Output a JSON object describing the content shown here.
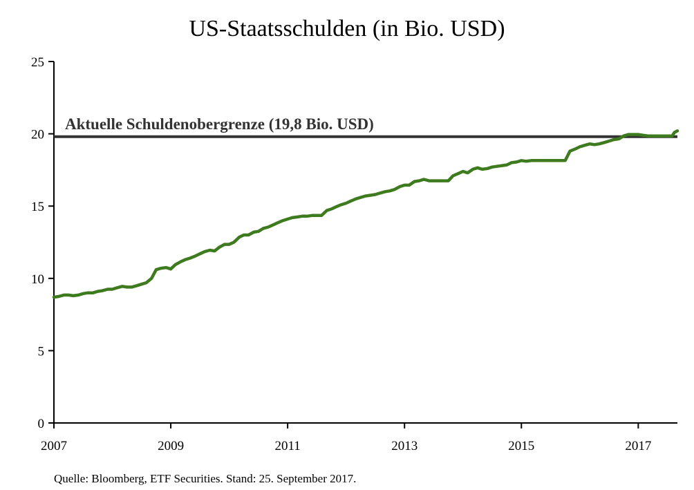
{
  "chart_data": {
    "type": "line",
    "title": "US-Staatsschulden (in Bio. USD)",
    "xlabel": "",
    "ylabel": "",
    "xlim": [
      2007.0,
      2017.67
    ],
    "ylim": [
      0,
      25
    ],
    "yticks": [
      0,
      5,
      10,
      15,
      20,
      25
    ],
    "xticks": [
      2007,
      2009,
      2011,
      2013,
      2015,
      2017
    ],
    "series": [
      {
        "name": "US-Staatsschulden",
        "color": "#3e7a1e",
        "x": [
          2007.0,
          2007.08,
          2007.17,
          2007.25,
          2007.33,
          2007.42,
          2007.5,
          2007.58,
          2007.67,
          2007.75,
          2007.83,
          2007.92,
          2008.0,
          2008.08,
          2008.17,
          2008.25,
          2008.33,
          2008.42,
          2008.5,
          2008.58,
          2008.67,
          2008.75,
          2008.83,
          2008.92,
          2009.0,
          2009.08,
          2009.17,
          2009.25,
          2009.33,
          2009.42,
          2009.5,
          2009.58,
          2009.67,
          2009.75,
          2009.83,
          2009.92,
          2010.0,
          2010.08,
          2010.17,
          2010.25,
          2010.33,
          2010.42,
          2010.5,
          2010.58,
          2010.67,
          2010.75,
          2010.83,
          2010.92,
          2011.0,
          2011.08,
          2011.17,
          2011.25,
          2011.33,
          2011.42,
          2011.5,
          2011.58,
          2011.67,
          2011.75,
          2011.83,
          2011.92,
          2012.0,
          2012.08,
          2012.17,
          2012.25,
          2012.33,
          2012.42,
          2012.5,
          2012.58,
          2012.67,
          2012.75,
          2012.83,
          2012.92,
          2013.0,
          2013.08,
          2013.17,
          2013.25,
          2013.33,
          2013.42,
          2013.5,
          2013.58,
          2013.67,
          2013.75,
          2013.83,
          2013.92,
          2014.0,
          2014.08,
          2014.17,
          2014.25,
          2014.33,
          2014.42,
          2014.5,
          2014.58,
          2014.67,
          2014.75,
          2014.83,
          2014.92,
          2015.0,
          2015.08,
          2015.17,
          2015.25,
          2015.33,
          2015.42,
          2015.5,
          2015.58,
          2015.67,
          2015.75,
          2015.83,
          2015.92,
          2016.0,
          2016.08,
          2016.17,
          2016.25,
          2016.33,
          2016.42,
          2016.5,
          2016.58,
          2016.67,
          2016.75,
          2016.83,
          2016.92,
          2017.0,
          2017.08,
          2017.17,
          2017.25,
          2017.33,
          2017.42,
          2017.5,
          2017.58,
          2017.62,
          2017.67
        ],
        "values": [
          8.7,
          8.75,
          8.85,
          8.85,
          8.8,
          8.85,
          8.95,
          9.0,
          9.0,
          9.1,
          9.15,
          9.25,
          9.25,
          9.35,
          9.45,
          9.4,
          9.4,
          9.5,
          9.6,
          9.7,
          10.0,
          10.6,
          10.7,
          10.75,
          10.65,
          10.95,
          11.15,
          11.3,
          11.4,
          11.55,
          11.7,
          11.85,
          11.95,
          11.9,
          12.15,
          12.35,
          12.35,
          12.5,
          12.85,
          13.0,
          13.0,
          13.2,
          13.25,
          13.45,
          13.55,
          13.7,
          13.85,
          14.0,
          14.1,
          14.2,
          14.25,
          14.3,
          14.3,
          14.35,
          14.35,
          14.35,
          14.7,
          14.8,
          14.95,
          15.1,
          15.2,
          15.35,
          15.5,
          15.6,
          15.7,
          15.75,
          15.8,
          15.9,
          16.0,
          16.05,
          16.15,
          16.35,
          16.45,
          16.45,
          16.7,
          16.75,
          16.85,
          16.75,
          16.75,
          16.75,
          16.75,
          16.75,
          17.1,
          17.25,
          17.4,
          17.3,
          17.55,
          17.65,
          17.55,
          17.6,
          17.7,
          17.75,
          17.8,
          17.85,
          18.0,
          18.05,
          18.15,
          18.1,
          18.15,
          18.15,
          18.15,
          18.15,
          18.15,
          18.15,
          18.15,
          18.15,
          18.8,
          18.95,
          19.1,
          19.2,
          19.3,
          19.25,
          19.3,
          19.4,
          19.5,
          19.6,
          19.65,
          19.85,
          19.95,
          19.95,
          19.95,
          19.9,
          19.85,
          19.85,
          19.85,
          19.85,
          19.85,
          19.85,
          20.1,
          20.2
        ]
      }
    ],
    "reference_line": {
      "value": 19.8,
      "label": "Aktuelle Schuldenobergrenze (19,8 Bio. USD)",
      "color": "#333333"
    },
    "source": "Quelle: Bloomberg, ETF Securities. Stand: 25. September 2017."
  }
}
